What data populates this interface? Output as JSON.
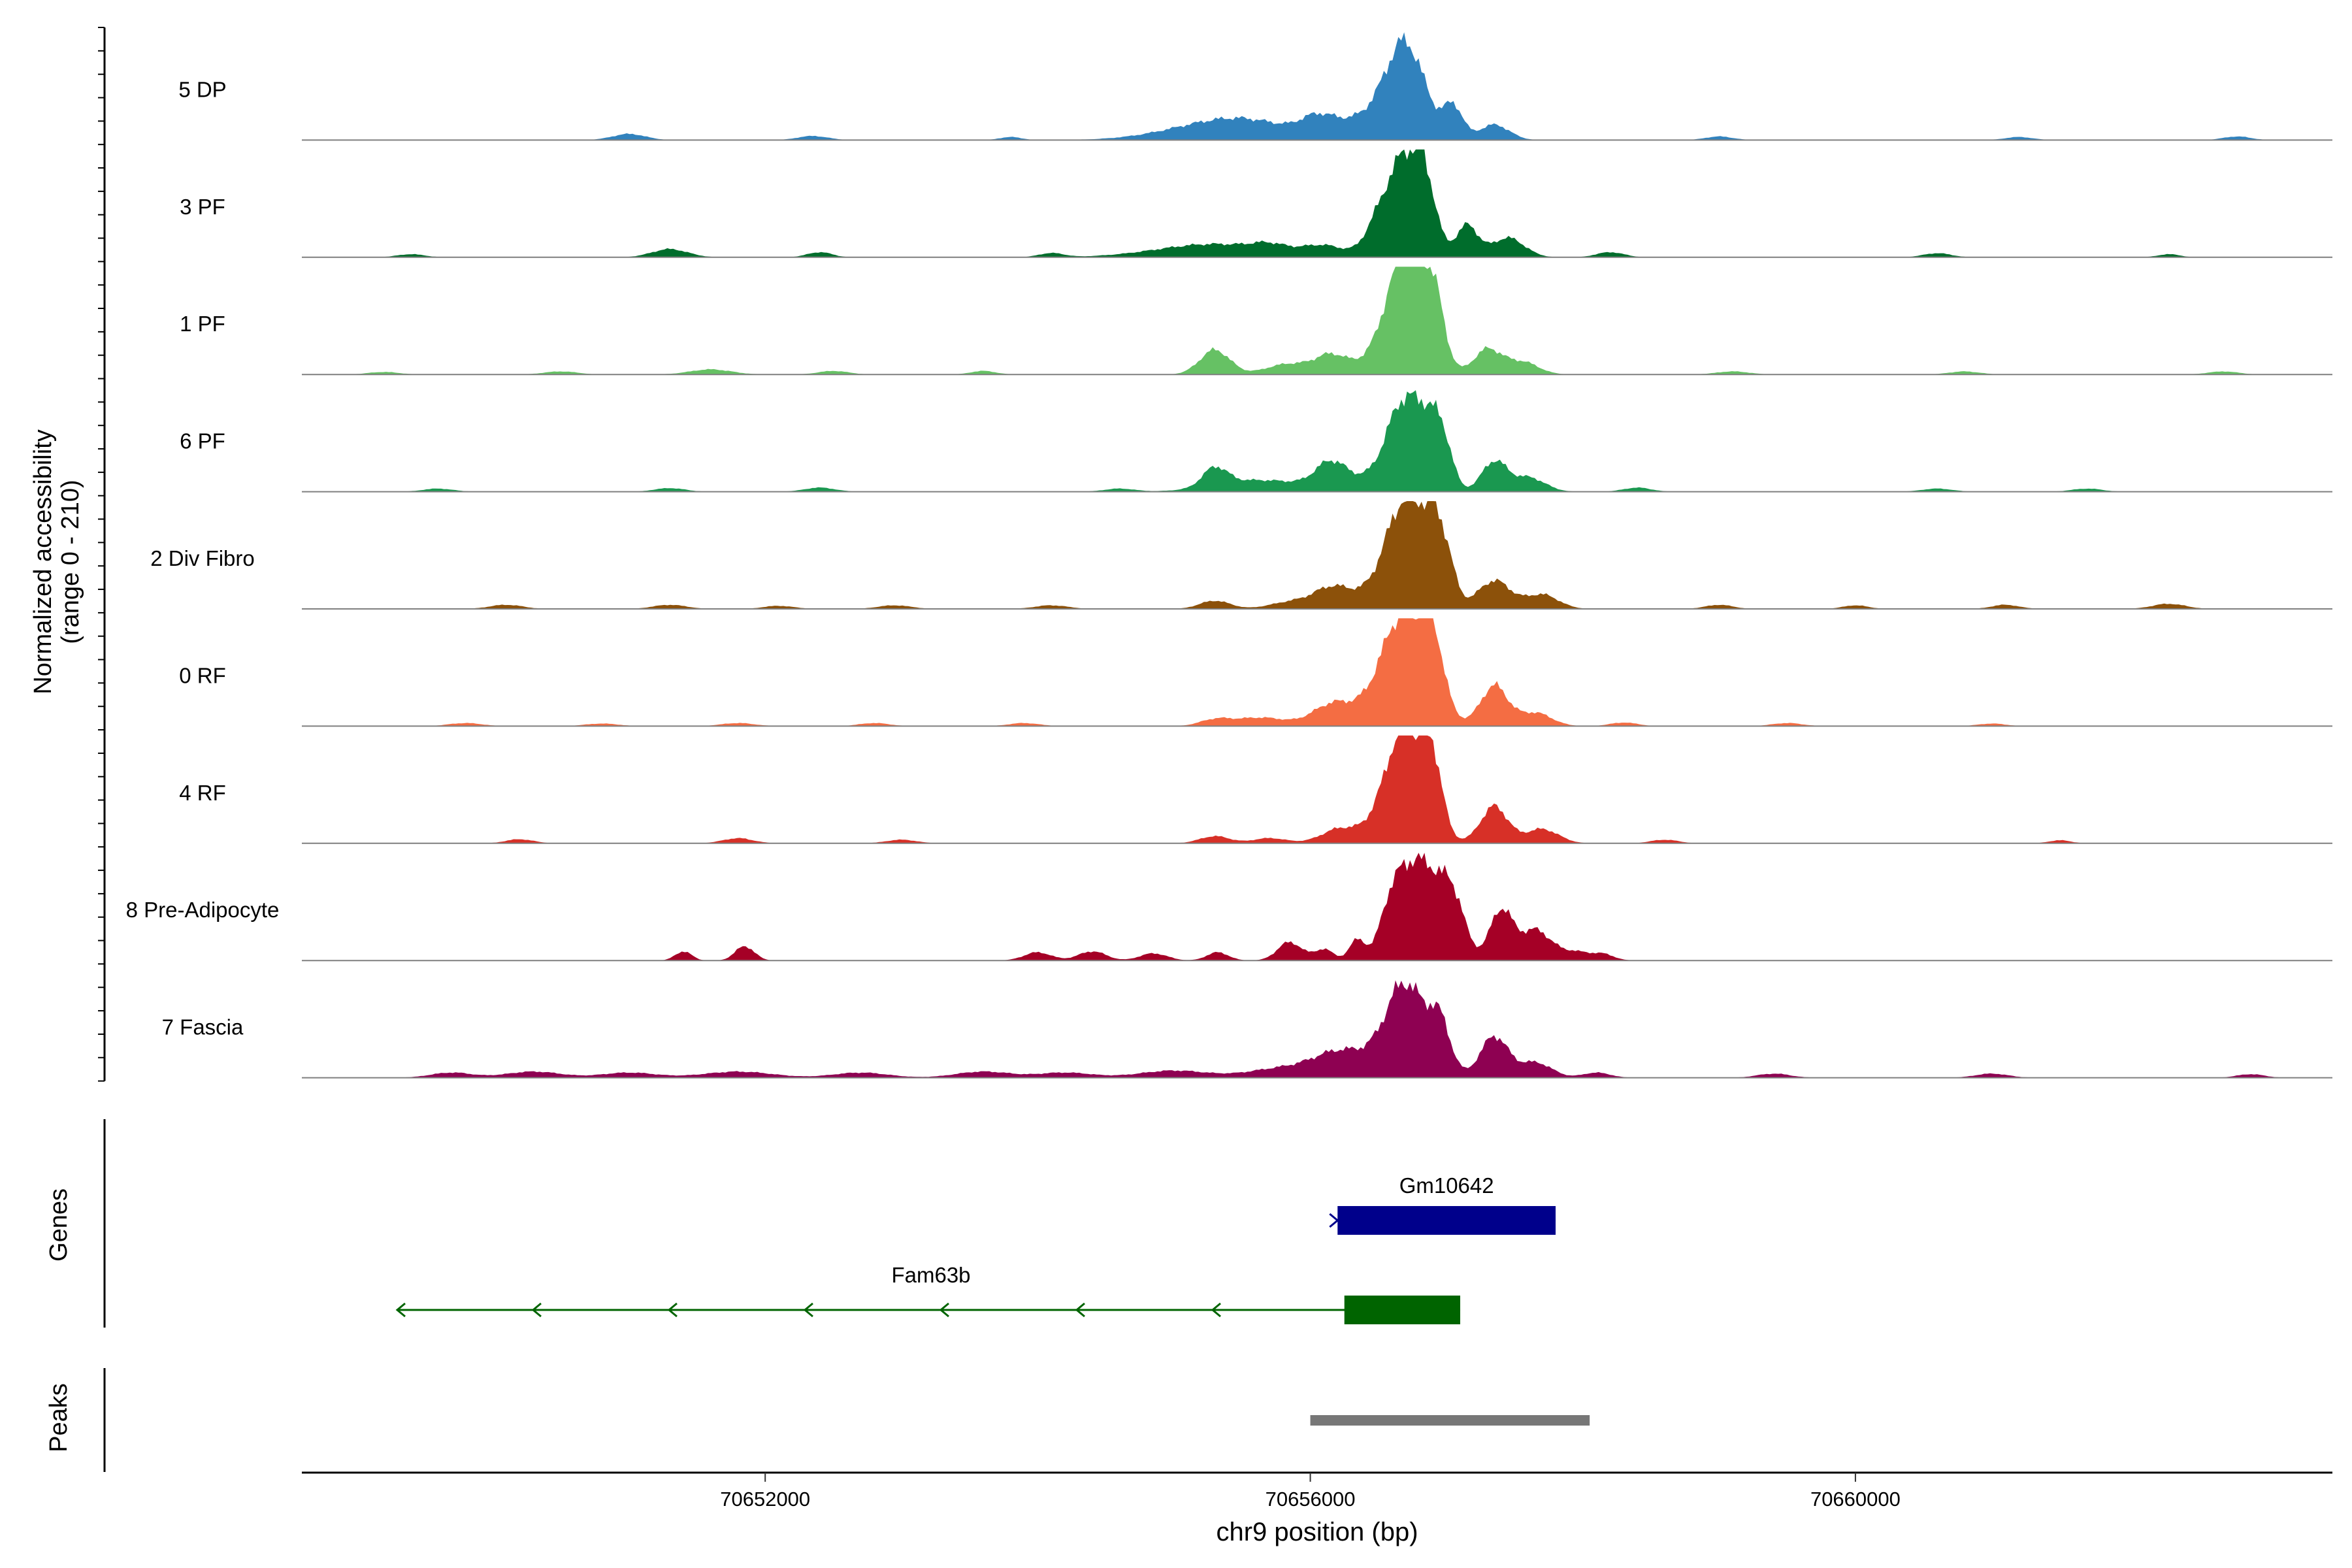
{
  "chart_data": {
    "type": "area",
    "title": "",
    "xlabel": "chr9 position (bp)",
    "ylabel": "Normalized accessibility",
    "ylabel_range": "(range 0 - 210)",
    "ylim": [
      0,
      210
    ],
    "xlim": [
      70648600,
      70663500
    ],
    "x_ticks": [
      70652000,
      70656000,
      70660000
    ],
    "x_tick_labels": [
      "70652000",
      "70656000",
      "70660000"
    ],
    "tracks": [
      {
        "name": "5 DP",
        "color": "#3182bd",
        "bumps": [
          [
            70651000,
            120,
            12
          ],
          [
            70652350,
            110,
            8
          ],
          [
            70653800,
            80,
            6
          ],
          [
            70655300,
            380,
            30
          ],
          [
            70655620,
            300,
            18
          ],
          [
            70656050,
            120,
            28
          ],
          [
            70656450,
            260,
            45
          ],
          [
            70656700,
            140,
            165
          ],
          [
            70657050,
            70,
            62
          ],
          [
            70657350,
            110,
            30
          ],
          [
            70659000,
            100,
            7
          ],
          [
            70661200,
            100,
            6
          ],
          [
            70662800,
            100,
            7
          ]
        ]
      },
      {
        "name": "3 PF",
        "color": "#006d2c",
        "bumps": [
          [
            70649400,
            100,
            6
          ],
          [
            70651300,
            130,
            16
          ],
          [
            70652400,
            90,
            10
          ],
          [
            70654100,
            90,
            8
          ],
          [
            70655300,
            420,
            26
          ],
          [
            70655700,
            120,
            12
          ],
          [
            70656100,
            160,
            20
          ],
          [
            70656500,
            100,
            58
          ],
          [
            70656700,
            120,
            185
          ],
          [
            70656850,
            80,
            100
          ],
          [
            70657150,
            80,
            62
          ],
          [
            70657450,
            120,
            38
          ],
          [
            70658200,
            100,
            10
          ],
          [
            70660600,
            100,
            8
          ],
          [
            70662300,
            80,
            6
          ]
        ]
      },
      {
        "name": "1 PF",
        "color": "#66c164",
        "bumps": [
          [
            70649200,
            110,
            5
          ],
          [
            70650500,
            120,
            6
          ],
          [
            70651600,
            150,
            10
          ],
          [
            70652500,
            110,
            7
          ],
          [
            70653600,
            90,
            7
          ],
          [
            70655300,
            110,
            48
          ],
          [
            70655830,
            160,
            18
          ],
          [
            70656150,
            110,
            26
          ],
          [
            70656400,
            300,
            18
          ],
          [
            70656700,
            140,
            225
          ],
          [
            70656900,
            80,
            120
          ],
          [
            70657300,
            100,
            48
          ],
          [
            70657550,
            120,
            25
          ],
          [
            70659100,
            120,
            6
          ],
          [
            70660800,
            110,
            6
          ],
          [
            70662700,
            110,
            6
          ]
        ]
      },
      {
        "name": "6 PF",
        "color": "#1a9850",
        "bumps": [
          [
            70649600,
            110,
            6
          ],
          [
            70651300,
            110,
            7
          ],
          [
            70652400,
            110,
            8
          ],
          [
            70654600,
            110,
            6
          ],
          [
            70655300,
            90,
            36
          ],
          [
            70655600,
            300,
            22
          ],
          [
            70656150,
            110,
            42
          ],
          [
            70656450,
            320,
            24
          ],
          [
            70656700,
            130,
            165
          ],
          [
            70656900,
            80,
            95
          ],
          [
            70657000,
            60,
            52
          ],
          [
            70657350,
            90,
            58
          ],
          [
            70657600,
            120,
            28
          ],
          [
            70658400,
            100,
            8
          ],
          [
            70660600,
            110,
            6
          ],
          [
            70661700,
            110,
            6
          ]
        ]
      },
      {
        "name": "2 Div Fibro",
        "color": "#8c510a",
        "bumps": [
          [
            70650100,
            120,
            8
          ],
          [
            70651300,
            120,
            8
          ],
          [
            70652100,
            110,
            6
          ],
          [
            70652950,
            120,
            7
          ],
          [
            70654100,
            120,
            7
          ],
          [
            70655300,
            110,
            16
          ],
          [
            70655850,
            150,
            10
          ],
          [
            70656150,
            120,
            24
          ],
          [
            70656400,
            300,
            28
          ],
          [
            70656700,
            140,
            195
          ],
          [
            70656900,
            80,
            105
          ],
          [
            70657000,
            70,
            68
          ],
          [
            70657350,
            120,
            55
          ],
          [
            70657700,
            120,
            28
          ],
          [
            70659000,
            100,
            8
          ],
          [
            70660000,
            90,
            7
          ],
          [
            70661100,
            100,
            8
          ],
          [
            70662300,
            120,
            10
          ]
        ]
      },
      {
        "name": "0 RF",
        "color": "#f46d43",
        "bumps": [
          [
            70649800,
            120,
            6
          ],
          [
            70650800,
            120,
            5
          ],
          [
            70651800,
            120,
            6
          ],
          [
            70652800,
            110,
            6
          ],
          [
            70653900,
            110,
            6
          ],
          [
            70655300,
            110,
            12
          ],
          [
            70655620,
            180,
            16
          ],
          [
            70656150,
            130,
            26
          ],
          [
            70656450,
            300,
            32
          ],
          [
            70656700,
            160,
            205
          ],
          [
            70656900,
            80,
            110
          ],
          [
            70657350,
            100,
            78
          ],
          [
            70657650,
            120,
            26
          ],
          [
            70658300,
            100,
            7
          ],
          [
            70659500,
            110,
            6
          ],
          [
            70661000,
            100,
            5
          ]
        ]
      },
      {
        "name": "4 RF",
        "color": "#d73027",
        "bumps": [
          [
            70650200,
            100,
            8
          ],
          [
            70651800,
            110,
            10
          ],
          [
            70653000,
            110,
            7
          ],
          [
            70655300,
            110,
            14
          ],
          [
            70655700,
            120,
            10
          ],
          [
            70656200,
            120,
            18
          ],
          [
            70656500,
            260,
            22
          ],
          [
            70656700,
            140,
            215
          ],
          [
            70656900,
            70,
            115
          ],
          [
            70657350,
            100,
            72
          ],
          [
            70657700,
            120,
            28
          ],
          [
            70658600,
            100,
            7
          ],
          [
            70661500,
            80,
            6
          ]
        ]
      },
      {
        "name": "8 Pre-Adipocyte",
        "color": "#a50026",
        "bumps": [
          [
            70651400,
            60,
            18
          ],
          [
            70651850,
            70,
            28
          ],
          [
            70654000,
            100,
            16
          ],
          [
            70654400,
            100,
            18
          ],
          [
            70654850,
            100,
            14
          ],
          [
            70655320,
            80,
            16
          ],
          [
            70655850,
            90,
            36
          ],
          [
            70656100,
            70,
            22
          ],
          [
            70656350,
            60,
            42
          ],
          [
            70656550,
            60,
            46
          ],
          [
            70656950,
            180,
            35
          ],
          [
            70656680,
            100,
            150
          ],
          [
            70656870,
            100,
            125
          ],
          [
            70657050,
            80,
            95
          ],
          [
            70657400,
            80,
            95
          ],
          [
            70657650,
            120,
            60
          ],
          [
            70657950,
            100,
            16
          ],
          [
            70658150,
            80,
            12
          ]
        ]
      },
      {
        "name": "7 Fascia",
        "color": "#8e0152",
        "bumps": [
          [
            70649700,
            150,
            10
          ],
          [
            70650300,
            200,
            12
          ],
          [
            70651000,
            200,
            10
          ],
          [
            70651800,
            250,
            12
          ],
          [
            70652700,
            200,
            10
          ],
          [
            70653600,
            200,
            12
          ],
          [
            70654200,
            200,
            10
          ],
          [
            70655000,
            250,
            14
          ],
          [
            70655800,
            250,
            18
          ],
          [
            70656200,
            180,
            30
          ],
          [
            70656500,
            300,
            32
          ],
          [
            70656700,
            140,
            160
          ],
          [
            70656950,
            80,
            90
          ],
          [
            70657350,
            100,
            80
          ],
          [
            70657650,
            120,
            30
          ],
          [
            70658100,
            100,
            10
          ],
          [
            70659400,
            120,
            8
          ],
          [
            70661000,
            120,
            8
          ],
          [
            70662900,
            100,
            7
          ]
        ]
      }
    ],
    "genes_panel_label": "Genes",
    "peaks_panel_label": "Peaks",
    "genes": [
      {
        "name": "Gm10642",
        "start": 70656200,
        "end": 70657800,
        "strand": "+",
        "exons": [
          [
            70656200,
            70657800
          ]
        ],
        "color": "#00008b",
        "row": 0
      },
      {
        "name": "Fam63b",
        "start": 70649300,
        "end": 70657100,
        "strand": "-",
        "exons": [
          [
            70656250,
            70657100
          ]
        ],
        "color": "#006400",
        "row": 1
      }
    ],
    "peaks": [
      {
        "start": 70656000,
        "end": 70658050,
        "color": "#777777"
      }
    ]
  }
}
